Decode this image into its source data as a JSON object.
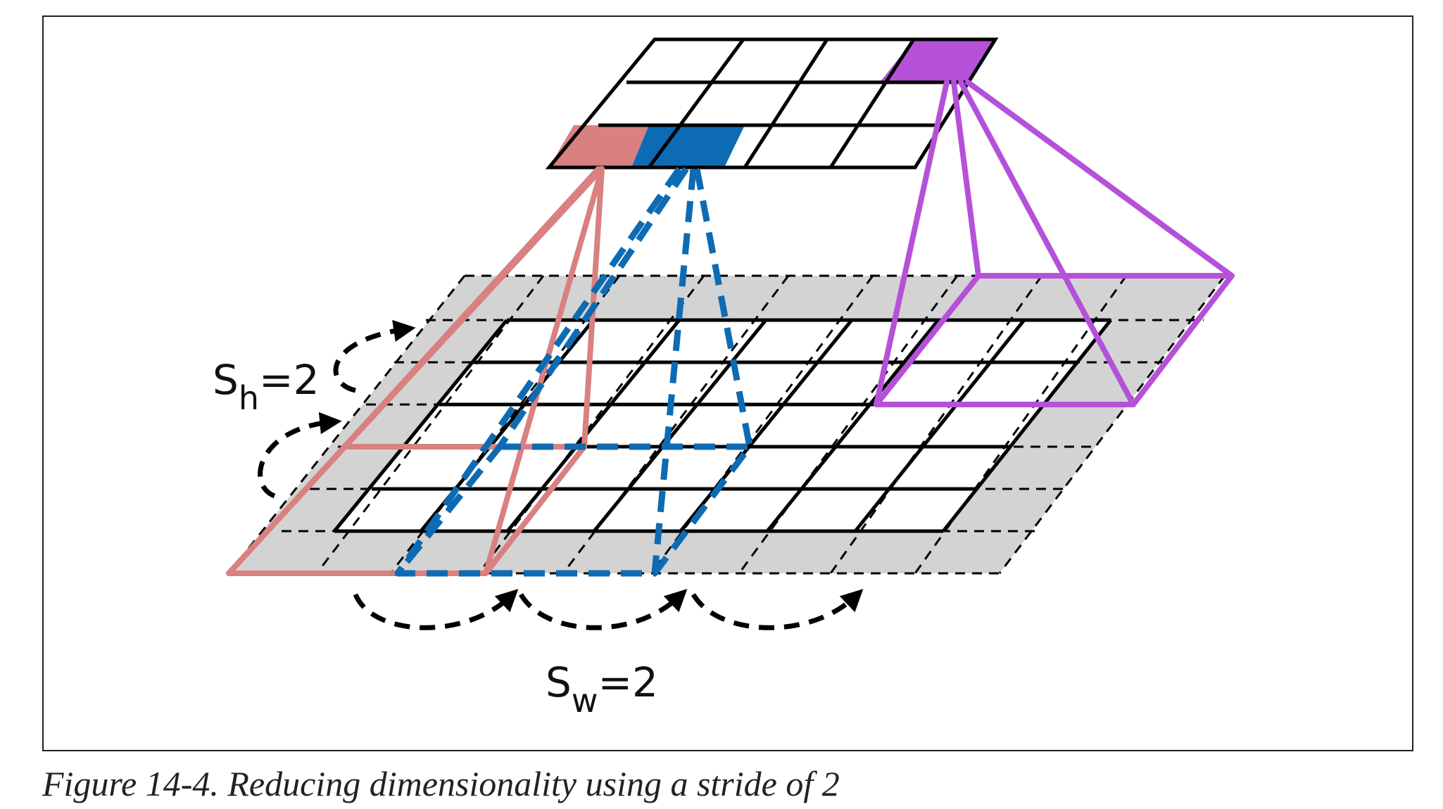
{
  "figure": {
    "caption": "Figure 14-4. Reducing dimensionality using a stride of 2",
    "stride_height_label": {
      "base": "S",
      "sub": "h",
      "suffix": "=2"
    },
    "stride_width_label": {
      "base": "S",
      "sub": "w",
      "suffix": "=2"
    },
    "colors": {
      "receptive_field_red": "#d98080",
      "receptive_field_blue": "#0d6bb3",
      "receptive_field_purple": "#b551d9",
      "padding_gray": "#d3d3d3",
      "grid_line": "#000000"
    }
  }
}
